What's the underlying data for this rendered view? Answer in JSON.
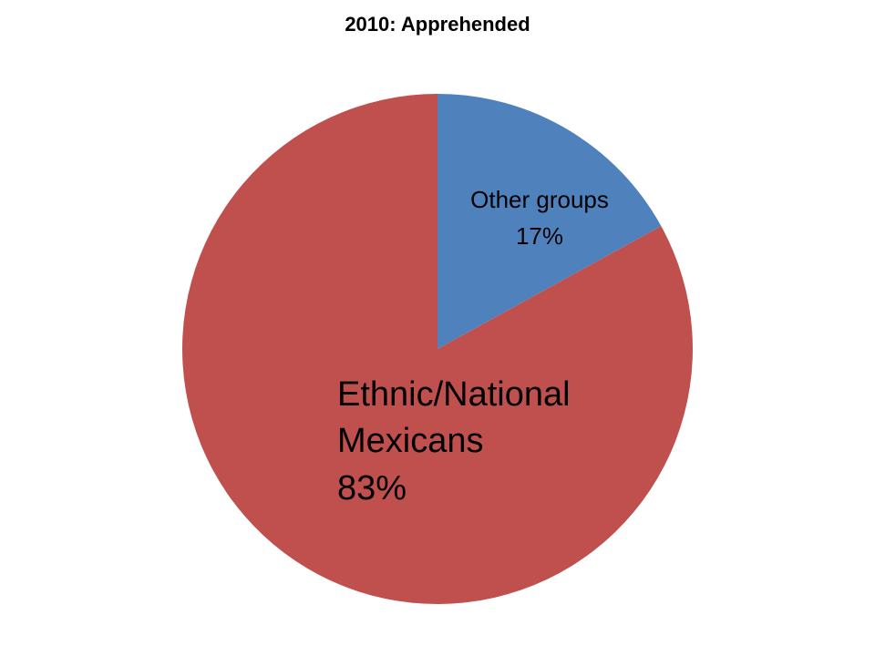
{
  "chart_data": {
    "type": "pie",
    "title": "2010: Apprehended",
    "slices": [
      {
        "name": "Other groups",
        "value": 17,
        "value_label": "17%",
        "color": "#4f81bd"
      },
      {
        "name": "Ethnic/National Mexicans",
        "name_lines": [
          "Ethnic/National",
          "Mexicans"
        ],
        "value": 83,
        "value_label": "83%",
        "color": "#c0504d"
      }
    ],
    "start_angle": "12 o'clock",
    "direction": "clockwise",
    "legend": "none"
  }
}
